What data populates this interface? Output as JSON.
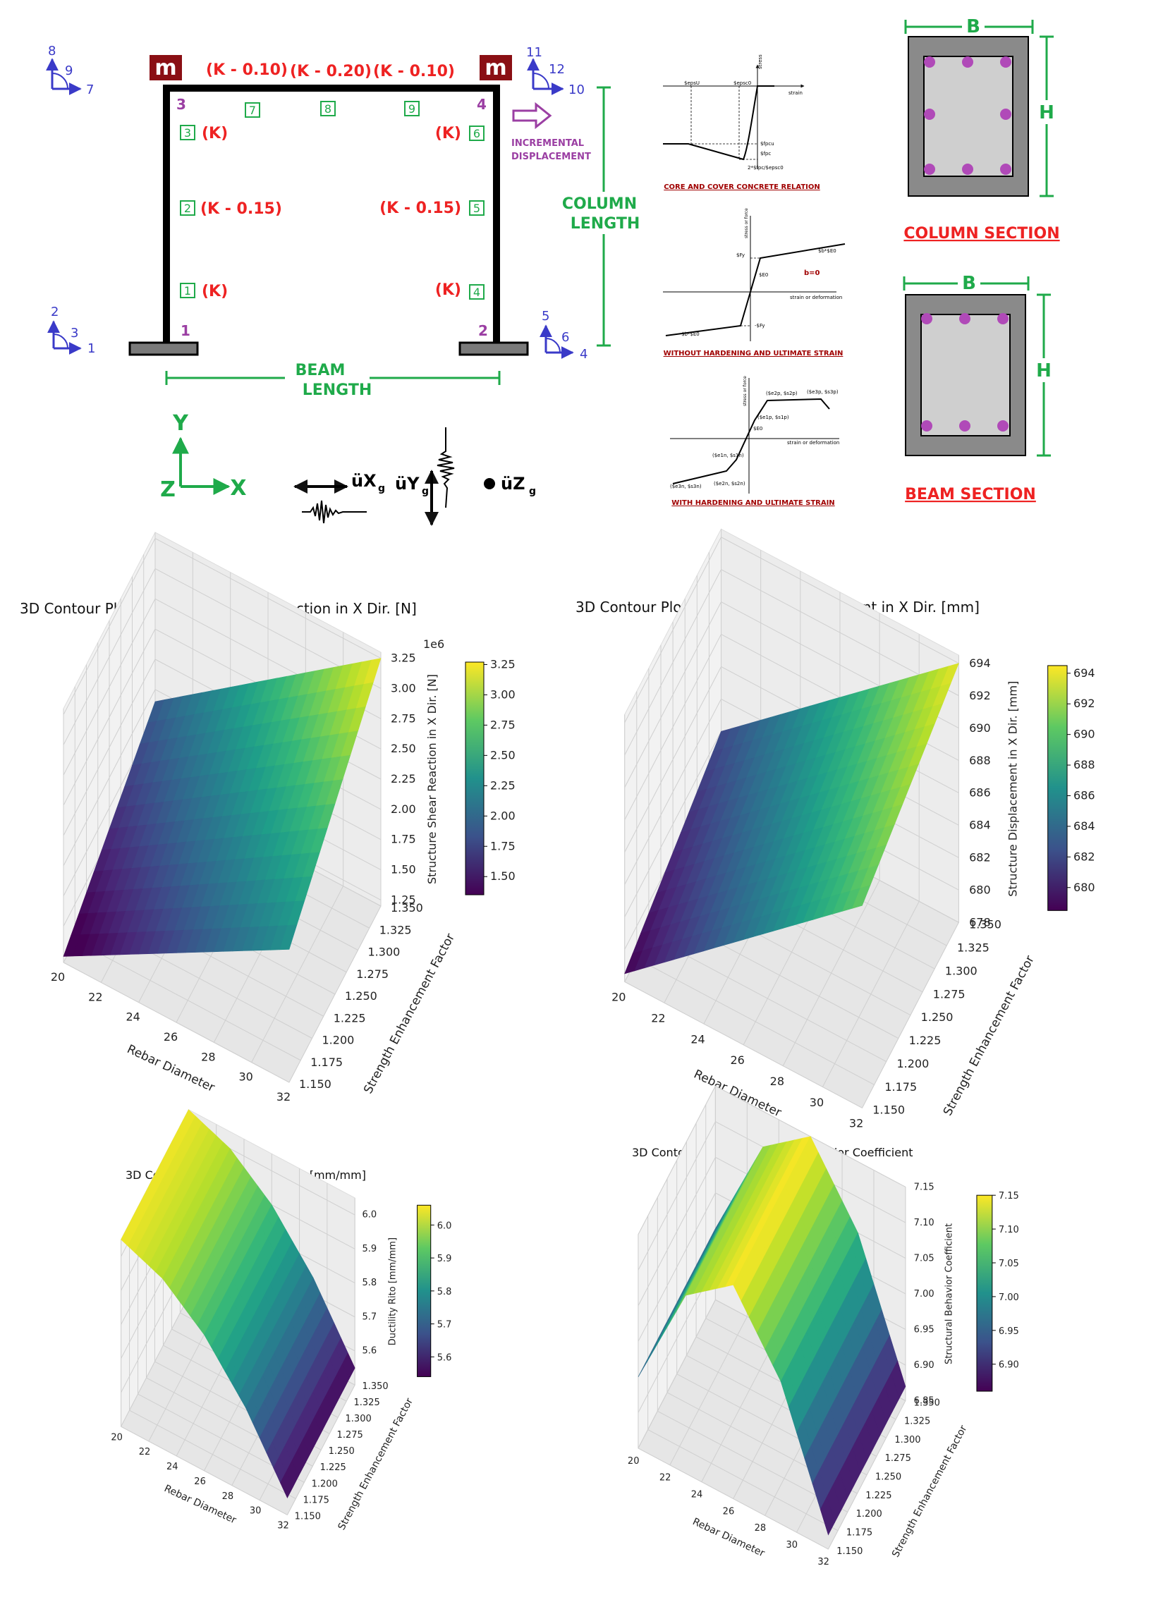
{
  "frame": {
    "mass_label": "m",
    "beam_stiffness": [
      "(K - 0.10)",
      "(K - 0.20)",
      "(K - 0.10)"
    ],
    "left_column_stiffness": [
      "(K)",
      "(K - 0.15)",
      "(K)"
    ],
    "right_column_stiffness": [
      "(K)",
      "(K - 0.15)",
      "(K)"
    ],
    "beam_elements": [
      "7",
      "8",
      "9"
    ],
    "left_column_elements": [
      "3",
      "2",
      "1"
    ],
    "right_column_elements": [
      "6",
      "5",
      "4"
    ],
    "nodes": [
      "1",
      "2",
      "3",
      "4"
    ],
    "dof_top_left": [
      "8",
      "9",
      "7"
    ],
    "dof_top_right": [
      "11",
      "12",
      "10"
    ],
    "dof_bottom_left": [
      "2",
      "3",
      "1"
    ],
    "dof_bottom_right": [
      "5",
      "6",
      "4"
    ],
    "incremental_displacement": [
      "INCREMENTAL",
      "DISPLACEMENT"
    ],
    "column_length": [
      "COLUMN",
      "LENGTH"
    ],
    "beam_length": [
      "BEAM",
      "LENGTH"
    ],
    "axes": {
      "y": "Y",
      "z": "Z",
      "x": "X"
    },
    "ground_motion": {
      "x": "üX",
      "y": "üY",
      "z": "üZ",
      "subscript": "g"
    }
  },
  "material_models": {
    "concrete_caption": "CORE AND COVER CONCRETE RELATION",
    "concrete_labels": [
      "$epsU",
      "$epsc0",
      "stress",
      "strain",
      "$fpcu",
      "$fpc",
      "2*$fpc/$epsc0"
    ],
    "steel1_caption": "WITHOUT HARDENING AND ULTIMATE STRAIN",
    "steel1_labels": [
      "stress or force",
      "$Fy",
      "$b*$E0",
      "$E0",
      "b=0",
      "strain or deformation",
      "-$Fy",
      "$b*$E0"
    ],
    "steel2_caption": "WITH HARDENING AND ULTIMATE STRAIN",
    "steel2_labels": [
      "stress or force",
      "($e2p, $s2p)",
      "($e3p, $s3p)",
      "($e1p, $s1p)",
      "$E0",
      "strain or deformation",
      "($e1n, $s1n)",
      "($e2n, $s2n)",
      "($e3n, $s3n)"
    ]
  },
  "sections": {
    "width_label": "B",
    "height_label": "H",
    "column_title": "COLUMN SECTION",
    "beam_title": "BEAM SECTION",
    "colors": {
      "cover": "#8a8a8a",
      "core": "#cfcfcf",
      "rebar": "#b04ab8"
    }
  },
  "chart_data": [
    {
      "type": "surface",
      "title": "3D Contour Plot of Structure Shear Reaction in X Dir. [N]",
      "xlabel": "Rebar Diameter",
      "ylabel": "Strength Enhancement Factor",
      "zlabel": "Structure Shear Reaction in X Dir. [N]",
      "offset_text": "1e6",
      "x_ticks": [
        "20",
        "22",
        "24",
        "26",
        "28",
        "30",
        "32"
      ],
      "y_ticks": [
        "1.150",
        "1.175",
        "1.200",
        "1.225",
        "1.250",
        "1.275",
        "1.300",
        "1.325",
        "1.350"
      ],
      "z_ticks": [
        "1.25",
        "1.50",
        "1.75",
        "2.00",
        "2.25",
        "2.50",
        "2.75",
        "3.00",
        "3.25"
      ],
      "colorbar_ticks": [
        "1.50",
        "1.75",
        "2.00",
        "2.25",
        "2.50",
        "2.75",
        "3.00",
        "3.25"
      ],
      "zlim": [
        1.2,
        3.3
      ],
      "colorbar_range": [
        1.35,
        3.27
      ],
      "x": [
        20,
        32
      ],
      "y": [
        1.15,
        1.35
      ],
      "corners": {
        "x20_y1.15": 1.25,
        "x32_y1.15": 2.3,
        "x20_y1.35": 1.9,
        "x32_y1.35": 3.25
      }
    },
    {
      "type": "surface",
      "title": "3D Contour Plot of Structure Displacement in X Dir. [mm]",
      "xlabel": "Rebar Diameter",
      "ylabel": "Strength Enhancement Factor",
      "zlabel": "Structure Displacement in X Dir. [mm]",
      "x_ticks": [
        "20",
        "22",
        "24",
        "26",
        "28",
        "30",
        "32"
      ],
      "y_ticks": [
        "1.150",
        "1.175",
        "1.200",
        "1.225",
        "1.250",
        "1.275",
        "1.300",
        "1.325",
        "1.350"
      ],
      "z_ticks": [
        "678",
        "680",
        "682",
        "684",
        "686",
        "688",
        "690",
        "692",
        "694"
      ],
      "colorbar_ticks": [
        "680",
        "682",
        "684",
        "686",
        "688",
        "690",
        "692",
        "694"
      ],
      "zlim": [
        678,
        694.5
      ],
      "colorbar_range": [
        678.5,
        694.5
      ],
      "x": [
        20,
        32
      ],
      "y": [
        1.15,
        1.35
      ],
      "corners": {
        "x20_y1.15": 678.5,
        "x32_y1.15": 690.5,
        "x20_y1.35": 682,
        "x32_y1.35": 694
      }
    },
    {
      "type": "surface",
      "title": "3D Contour Plot of Ductility Rito  [mm/mm]",
      "xlabel": "Rebar Diameter",
      "ylabel": "Strength Enhancement Factor",
      "zlabel": "Ductility Rito  [mm/mm]",
      "x_ticks": [
        "20",
        "22",
        "24",
        "26",
        "28",
        "30",
        "32"
      ],
      "y_ticks": [
        "1.150",
        "1.175",
        "1.200",
        "1.225",
        "1.250",
        "1.275",
        "1.300",
        "1.325",
        "1.350"
      ],
      "z_ticks": [
        "5.6",
        "5.7",
        "5.8",
        "5.9",
        "6.0"
      ],
      "colorbar_ticks": [
        "5.6",
        "5.7",
        "5.8",
        "5.9",
        "6.0"
      ],
      "zlim": [
        5.5,
        6.05
      ],
      "colorbar_range": [
        5.54,
        6.06
      ],
      "x": [
        20,
        32
      ],
      "y": [
        1.15,
        1.35
      ],
      "profile_along_x": {
        "x": [
          20,
          23,
          26,
          29,
          32
        ],
        "z": [
          6.05,
          6.0,
          5.9,
          5.75,
          5.55
        ]
      }
    },
    {
      "type": "surface",
      "title": "3D Contour Plot of Structural Behavior Coefficient",
      "xlabel": "Rebar Diameter",
      "ylabel": "Strength Enhancement Factor",
      "zlabel": "Structural Behavior Coefficient",
      "x_ticks": [
        "20",
        "22",
        "24",
        "26",
        "28",
        "30",
        "32"
      ],
      "y_ticks": [
        "1.150",
        "1.175",
        "1.200",
        "1.225",
        "1.250",
        "1.275",
        "1.300",
        "1.325",
        "1.350"
      ],
      "z_ticks": [
        "6.85",
        "6.90",
        "6.95",
        "7.00",
        "7.05",
        "7.10",
        "7.15"
      ],
      "colorbar_ticks": [
        "6.90",
        "6.95",
        "7.00",
        "7.05",
        "7.10",
        "7.15"
      ],
      "zlim": [
        6.85,
        7.15
      ],
      "colorbar_range": [
        6.86,
        7.15
      ],
      "x": [
        20,
        32
      ],
      "y": [
        1.15,
        1.35
      ],
      "profile_along_x": {
        "x": [
          20,
          23,
          26,
          29,
          32
        ],
        "z": [
          6.95,
          7.1,
          7.15,
          7.05,
          6.87
        ]
      }
    }
  ]
}
